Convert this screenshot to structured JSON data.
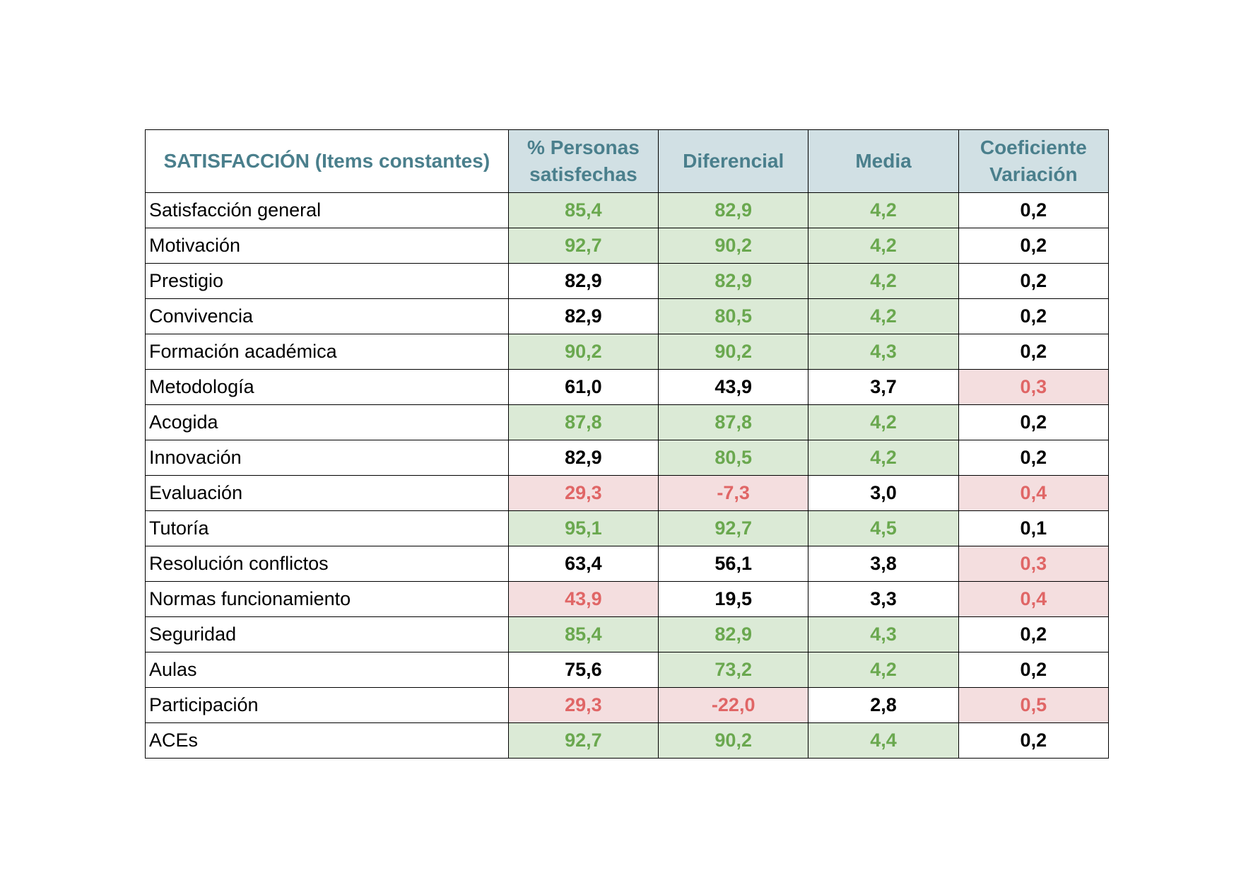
{
  "table": {
    "headers": [
      "SATISFACCIÓN (Items constantes)",
      "% Personas satisfechas",
      "Diferencial",
      "Media",
      "Coeficiente Variación"
    ],
    "rows": [
      {
        "label": "Satisfacción general",
        "cells": [
          {
            "v": "85,4",
            "s": "good"
          },
          {
            "v": "82,9",
            "s": "good"
          },
          {
            "v": "4,2",
            "s": "good"
          },
          {
            "v": "0,2",
            "s": "neutral"
          }
        ]
      },
      {
        "label": "Motivación",
        "cells": [
          {
            "v": "92,7",
            "s": "good"
          },
          {
            "v": "90,2",
            "s": "good"
          },
          {
            "v": "4,2",
            "s": "good"
          },
          {
            "v": "0,2",
            "s": "neutral"
          }
        ]
      },
      {
        "label": "Prestigio",
        "cells": [
          {
            "v": "82,9",
            "s": "neutral"
          },
          {
            "v": "82,9",
            "s": "good"
          },
          {
            "v": "4,2",
            "s": "good"
          },
          {
            "v": "0,2",
            "s": "neutral"
          }
        ]
      },
      {
        "label": "Convivencia",
        "cells": [
          {
            "v": "82,9",
            "s": "neutral"
          },
          {
            "v": "80,5",
            "s": "good"
          },
          {
            "v": "4,2",
            "s": "good"
          },
          {
            "v": "0,2",
            "s": "neutral"
          }
        ]
      },
      {
        "label": "Formación académica",
        "cells": [
          {
            "v": "90,2",
            "s": "good"
          },
          {
            "v": "90,2",
            "s": "good"
          },
          {
            "v": "4,3",
            "s": "good"
          },
          {
            "v": "0,2",
            "s": "neutral"
          }
        ]
      },
      {
        "label": "Metodología",
        "cells": [
          {
            "v": "61,0",
            "s": "neutral"
          },
          {
            "v": "43,9",
            "s": "neutral"
          },
          {
            "v": "3,7",
            "s": "neutral"
          },
          {
            "v": "0,3",
            "s": "bad"
          }
        ]
      },
      {
        "label": "Acogida",
        "cells": [
          {
            "v": "87,8",
            "s": "good"
          },
          {
            "v": "87,8",
            "s": "good"
          },
          {
            "v": "4,2",
            "s": "good"
          },
          {
            "v": "0,2",
            "s": "neutral"
          }
        ]
      },
      {
        "label": "Innovación",
        "cells": [
          {
            "v": "82,9",
            "s": "neutral"
          },
          {
            "v": "80,5",
            "s": "good"
          },
          {
            "v": "4,2",
            "s": "good"
          },
          {
            "v": "0,2",
            "s": "neutral"
          }
        ]
      },
      {
        "label": "Evaluación",
        "cells": [
          {
            "v": "29,3",
            "s": "bad"
          },
          {
            "v": "-7,3",
            "s": "bad"
          },
          {
            "v": "3,0",
            "s": "neutral"
          },
          {
            "v": "0,4",
            "s": "bad"
          }
        ]
      },
      {
        "label": "Tutoría",
        "cells": [
          {
            "v": "95,1",
            "s": "good"
          },
          {
            "v": "92,7",
            "s": "good"
          },
          {
            "v": "4,5",
            "s": "good"
          },
          {
            "v": "0,1",
            "s": "neutral"
          }
        ]
      },
      {
        "label": "Resolución conflictos",
        "cells": [
          {
            "v": "63,4",
            "s": "neutral"
          },
          {
            "v": "56,1",
            "s": "neutral"
          },
          {
            "v": "3,8",
            "s": "neutral"
          },
          {
            "v": "0,3",
            "s": "bad"
          }
        ]
      },
      {
        "label": "Normas funcionamiento",
        "cells": [
          {
            "v": "43,9",
            "s": "bad"
          },
          {
            "v": "19,5",
            "s": "neutral"
          },
          {
            "v": "3,3",
            "s": "neutral"
          },
          {
            "v": "0,4",
            "s": "bad"
          }
        ]
      },
      {
        "label": "Seguridad",
        "cells": [
          {
            "v": "85,4",
            "s": "good"
          },
          {
            "v": "82,9",
            "s": "good"
          },
          {
            "v": "4,3",
            "s": "good"
          },
          {
            "v": "0,2",
            "s": "neutral"
          }
        ]
      },
      {
        "label": "Aulas",
        "cells": [
          {
            "v": "75,6",
            "s": "neutral"
          },
          {
            "v": "73,2",
            "s": "good"
          },
          {
            "v": "4,2",
            "s": "good"
          },
          {
            "v": "0,2",
            "s": "neutral"
          }
        ]
      },
      {
        "label": "Participación",
        "cells": [
          {
            "v": "29,3",
            "s": "bad"
          },
          {
            "v": "-22,0",
            "s": "bad"
          },
          {
            "v": "2,8",
            "s": "neutral"
          },
          {
            "v": "0,5",
            "s": "bad"
          }
        ]
      },
      {
        "label": "ACEs",
        "cells": [
          {
            "v": "92,7",
            "s": "good"
          },
          {
            "v": "90,2",
            "s": "good"
          },
          {
            "v": "4,4",
            "s": "good"
          },
          {
            "v": "0,2",
            "s": "neutral"
          }
        ]
      }
    ]
  },
  "colors": {
    "header_bg": "#d1e0e4",
    "header_text": "#4a7f8c",
    "good_bg": "#dbead6",
    "good_text": "#6aa84f",
    "bad_bg": "#f4dedf",
    "bad_text": "#e06666",
    "neutral_text": "#000000"
  }
}
